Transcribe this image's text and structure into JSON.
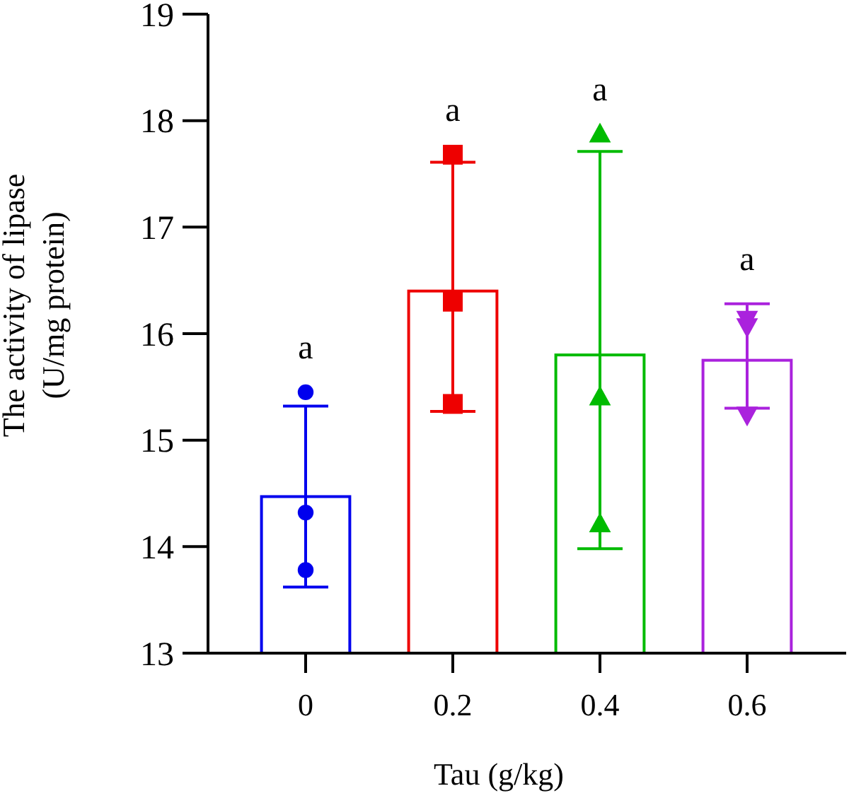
{
  "chart_data": {
    "type": "bar",
    "xlabel": "Tau (g/kg)",
    "ylabel": "The activity of lipase\n(U/mg protein)",
    "categories": [
      "0",
      "0.2",
      "0.4",
      "0.6"
    ],
    "ylim": [
      13,
      19
    ],
    "yticks": [
      13,
      14,
      15,
      16,
      17,
      18,
      19
    ],
    "grid": false,
    "series": [
      {
        "values": [
          14.47,
          16.4,
          15.8,
          15.75
        ],
        "colors": [
          "#0000ee",
          "#ee0000",
          "#00bb00",
          "#aa22dd"
        ],
        "errors": [
          0.85,
          [
            15.27,
            17.61
          ],
          [
            13.98,
            17.71
          ],
          [
            15.3,
            16.28
          ]
        ]
      },
      {
        "type": "scatter",
        "color": "#0000ee",
        "marker": "circle",
        "x": [
          "0",
          "0",
          "0"
        ],
        "values": [
          15.45,
          14.32,
          13.78
        ]
      },
      {
        "type": "scatter",
        "color": "#ee0000",
        "marker": "square",
        "x": [
          "0.2",
          "0.2",
          "0.2"
        ],
        "values": [
          17.68,
          16.3,
          15.34
        ]
      },
      {
        "type": "scatter",
        "color": "#00bb00",
        "marker": "triangle",
        "x": [
          "0.4",
          "0.4",
          "0.4"
        ],
        "values": [
          17.87,
          15.4,
          14.21
        ]
      },
      {
        "type": "scatter",
        "color": "#aa22dd",
        "marker": "triangle-down",
        "x": [
          "0.6",
          "0.6",
          "0.6"
        ],
        "values": [
          16.07,
          16.14,
          15.24
        ]
      }
    ],
    "annotations": [
      "a",
      "a",
      "a",
      "a"
    ]
  }
}
